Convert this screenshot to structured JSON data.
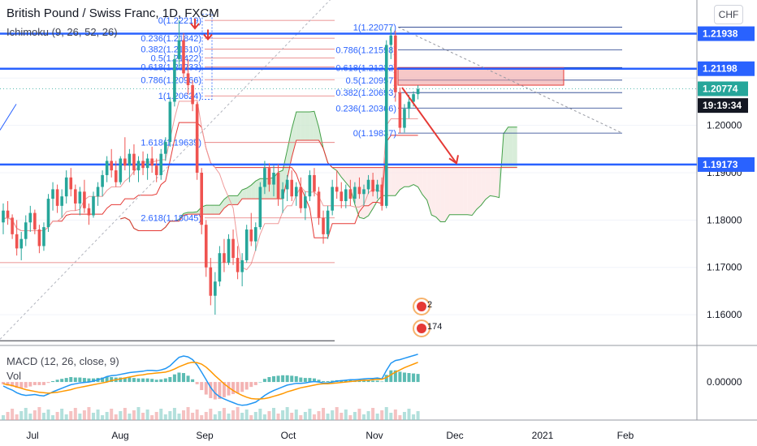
{
  "header": {
    "title": "British Pound / Swiss Franc, 1D, FXCM",
    "indicator": "Ichimoku (9, 26, 52, 26)",
    "currency": "CHF"
  },
  "colors": {
    "bull": "#26a69a",
    "bear": "#ef5350",
    "fib": "#2962ff",
    "blue_line": "#2962ff",
    "cloud_green": "#c8e6c9",
    "cloud_red": "#fce4e4",
    "green_line": "#43a047",
    "red_line": "#e53935",
    "macd": "#2196f3",
    "signal": "#ff9800",
    "arrow": "#e53935",
    "dark_label": "#131722",
    "green_label": "#26a69a"
  },
  "chart_data": [
    {
      "type": "candlestick",
      "title": "British Pound / Swiss Franc, 1D, FXCM",
      "ylim": [
        1.1535,
        1.2265
      ],
      "y_ticks": [
        "1.20000",
        "1.19000",
        "1.18000",
        "1.17000",
        "1.16000"
      ],
      "x_ticks": [
        "Jul",
        "Aug",
        "Sep",
        "Oct",
        "Nov",
        "Dec",
        "2021",
        "Feb"
      ],
      "price_labels": [
        {
          "text": "1.21938",
          "value": 1.21938,
          "style": "blue"
        },
        {
          "text": "1.21198",
          "value": 1.21198,
          "style": "blue"
        },
        {
          "text": "1.20774",
          "value": 1.20774,
          "style": "green"
        },
        {
          "text": "19:19:34",
          "value": 1.2042,
          "style": "dark"
        },
        {
          "text": "1.19173",
          "value": 1.19173,
          "style": "blue"
        }
      ],
      "horizontal_levels": [
        1.21938,
        1.21198,
        1.19173
      ],
      "fib_left": [
        {
          "label": "0(1.22219)",
          "value": 1.22219
        },
        {
          "label": "0.236(1.21842)",
          "value": 1.21842
        },
        {
          "label": "0.382(1.21610)",
          "value": 1.2161
        },
        {
          "label": "0.5(1.21422)",
          "value": 1.21422
        },
        {
          "label": "0.618(1.21233)",
          "value": 1.21233
        },
        {
          "label": "0.786(1.20966)",
          "value": 1.20966
        },
        {
          "label": "1(1.20624)",
          "value": 1.20624
        },
        {
          "label": "1.618(1.19639)",
          "value": 1.19639
        },
        {
          "label": "2.618(1.18045)",
          "value": 1.18045
        }
      ],
      "fib_right": [
        {
          "label": "1(1.22077)",
          "value": 1.22077
        },
        {
          "label": "0.786(1.21598)",
          "value": 1.21598
        },
        {
          "label": "0.618(1.21222)",
          "value": 1.21222
        },
        {
          "label": "0.5(1.20957)",
          "value": 1.20957
        },
        {
          "label": "0.382(1.20693)",
          "value": 1.20693
        },
        {
          "label": "0.236(1.20366)",
          "value": 1.20366
        },
        {
          "label": "0(1.19837)",
          "value": 1.19837
        }
      ],
      "annotation_counts": [
        "2",
        "174"
      ],
      "candles": [
        [
          1.1795,
          1.1835,
          1.177,
          1.182
        ],
        [
          1.182,
          1.184,
          1.179,
          1.1805
        ],
        [
          1.1805,
          1.1812,
          1.176,
          1.177
        ],
        [
          1.177,
          1.18,
          1.1725,
          1.174
        ],
        [
          1.174,
          1.1775,
          1.1715,
          1.176
        ],
        [
          1.176,
          1.181,
          1.1745,
          1.1795
        ],
        [
          1.1795,
          1.183,
          1.1775,
          1.1815
        ],
        [
          1.1815,
          1.1822,
          1.177,
          1.178
        ],
        [
          1.178,
          1.179,
          1.173,
          1.1745
        ],
        [
          1.1745,
          1.1795,
          1.1735,
          1.1785
        ],
        [
          1.1785,
          1.1855,
          1.1775,
          1.1845
        ],
        [
          1.1845,
          1.188,
          1.182,
          1.1865
        ],
        [
          1.1865,
          1.1875,
          1.1815,
          1.183
        ],
        [
          1.183,
          1.1865,
          1.1805,
          1.185
        ],
        [
          1.185,
          1.1905,
          1.1835,
          1.189
        ],
        [
          1.189,
          1.191,
          1.185,
          1.1865
        ],
        [
          1.1865,
          1.1875,
          1.182,
          1.1835
        ],
        [
          1.1835,
          1.187,
          1.181,
          1.186
        ],
        [
          1.186,
          1.1885,
          1.1815,
          1.1825
        ],
        [
          1.1825,
          1.1835,
          1.179,
          1.181
        ],
        [
          1.181,
          1.186,
          1.1805,
          1.185
        ],
        [
          1.185,
          1.188,
          1.183,
          1.187
        ],
        [
          1.187,
          1.1905,
          1.185,
          1.1895
        ],
        [
          1.1895,
          1.1935,
          1.188,
          1.1925
        ],
        [
          1.1925,
          1.195,
          1.189,
          1.1905
        ],
        [
          1.1905,
          1.1925,
          1.187,
          1.188
        ],
        [
          1.188,
          1.1935,
          1.1875,
          1.193
        ],
        [
          1.193,
          1.1975,
          1.1905,
          1.1915
        ],
        [
          1.1915,
          1.195,
          1.188,
          1.194
        ],
        [
          1.194,
          1.196,
          1.1895,
          1.1905
        ],
        [
          1.1905,
          1.1935,
          1.188,
          1.1925
        ],
        [
          1.1925,
          1.1945,
          1.1895,
          1.191
        ],
        [
          1.191,
          1.194,
          1.1885,
          1.193
        ],
        [
          1.193,
          1.1955,
          1.19,
          1.1915
        ],
        [
          1.1915,
          1.193,
          1.188,
          1.1895
        ],
        [
          1.1895,
          1.195,
          1.1885,
          1.194
        ],
        [
          1.194,
          1.1975,
          1.1925,
          1.1965
        ],
        [
          1.1965,
          1.206,
          1.1955,
          1.205
        ],
        [
          1.205,
          1.215,
          1.204,
          1.214
        ],
        [
          1.214,
          1.2222,
          1.212,
          1.218
        ],
        [
          1.218,
          1.2195,
          1.21,
          1.211
        ],
        [
          1.211,
          1.214,
          1.2065,
          1.2085
        ],
        [
          1.2085,
          1.2095,
          1.203,
          1.2045
        ],
        [
          1.2045,
          1.205,
          1.1885,
          1.19
        ],
        [
          1.19,
          1.191,
          1.177,
          1.179
        ],
        [
          1.179,
          1.18,
          1.168,
          1.17
        ],
        [
          1.17,
          1.172,
          1.162,
          1.164
        ],
        [
          1.164,
          1.169,
          1.16,
          1.167
        ],
        [
          1.167,
          1.1745,
          1.166,
          1.173
        ],
        [
          1.173,
          1.176,
          1.169,
          1.171
        ],
        [
          1.171,
          1.177,
          1.1705,
          1.176
        ],
        [
          1.176,
          1.178,
          1.1705,
          1.172
        ],
        [
          1.172,
          1.1745,
          1.1675,
          1.169
        ],
        [
          1.169,
          1.173,
          1.166,
          1.1715
        ],
        [
          1.1715,
          1.179,
          1.171,
          1.178
        ],
        [
          1.178,
          1.1815,
          1.1745,
          1.1755
        ],
        [
          1.1755,
          1.1795,
          1.1735,
          1.1785
        ],
        [
          1.1785,
          1.188,
          1.178,
          1.187
        ],
        [
          1.187,
          1.1925,
          1.1855,
          1.191
        ],
        [
          1.191,
          1.192,
          1.186,
          1.1875
        ],
        [
          1.1875,
          1.1915,
          1.185,
          1.19
        ],
        [
          1.19,
          1.1918,
          1.183,
          1.1845
        ],
        [
          1.1845,
          1.188,
          1.1815,
          1.1865
        ],
        [
          1.1865,
          1.1895,
          1.184,
          1.1885
        ],
        [
          1.1885,
          1.1905,
          1.184,
          1.185
        ],
        [
          1.185,
          1.188,
          1.183,
          1.187
        ],
        [
          1.187,
          1.189,
          1.1815,
          1.1825
        ],
        [
          1.1825,
          1.186,
          1.18,
          1.185
        ],
        [
          1.185,
          1.1905,
          1.184,
          1.1895
        ],
        [
          1.1895,
          1.191,
          1.185,
          1.186
        ],
        [
          1.186,
          1.187,
          1.179,
          1.1805
        ],
        [
          1.1805,
          1.182,
          1.175,
          1.177
        ],
        [
          1.177,
          1.183,
          1.176,
          1.182
        ],
        [
          1.182,
          1.1885,
          1.181,
          1.187
        ],
        [
          1.187,
          1.1905,
          1.1845,
          1.186
        ],
        [
          1.186,
          1.188,
          1.1825,
          1.184
        ],
        [
          1.184,
          1.1875,
          1.1825,
          1.1865
        ],
        [
          1.1865,
          1.1885,
          1.183,
          1.1845
        ],
        [
          1.1845,
          1.188,
          1.1835,
          1.187
        ],
        [
          1.187,
          1.189,
          1.1845,
          1.1855
        ],
        [
          1.1855,
          1.1875,
          1.183,
          1.1865
        ],
        [
          1.1865,
          1.1895,
          1.1855,
          1.1885
        ],
        [
          1.1885,
          1.19,
          1.185,
          1.186
        ],
        [
          1.186,
          1.1885,
          1.1845,
          1.1875
        ],
        [
          1.1875,
          1.189,
          1.182,
          1.183
        ],
        [
          1.183,
          1.218,
          1.1825,
          1.217
        ],
        [
          1.217,
          1.2208,
          1.214,
          1.219
        ],
        [
          1.219,
          1.22,
          1.205,
          1.207
        ],
        [
          1.207,
          1.208,
          1.1984,
          1.1995
        ],
        [
          1.1995,
          1.2045,
          1.1985,
          1.2035
        ],
        [
          1.2035,
          1.2065,
          1.2015,
          1.205
        ],
        [
          1.205,
          1.2072,
          1.204,
          1.2066
        ],
        [
          1.2066,
          1.2085,
          1.2055,
          1.2077
        ]
      ],
      "macd": {
        "ylim": [
          -0.0085,
          0.0078
        ],
        "y_ticks": [
          "0.00000"
        ],
        "series": [
          {
            "name": "MACD",
            "values": [
              -0.0009,
              -0.0014,
              -0.0018,
              -0.0024,
              -0.0028,
              -0.003,
              -0.0029,
              -0.0028,
              -0.003,
              -0.0031,
              -0.0027,
              -0.0022,
              -0.0018,
              -0.0014,
              -0.001,
              -0.0006,
              -0.0004,
              -0.0002,
              -0.0001,
              0.0,
              0.0002,
              0.0005,
              0.0008,
              0.0012,
              0.0014,
              0.0015,
              0.0017,
              0.0019,
              0.0021,
              0.0022,
              0.0023,
              0.0024,
              0.0026,
              0.0026,
              0.0025,
              0.0027,
              0.003,
              0.0036,
              0.0046,
              0.0055,
              0.0058,
              0.0056,
              0.005,
              0.0038,
              0.0022,
              0.0005,
              -0.0012,
              -0.0025,
              -0.0033,
              -0.0038,
              -0.0042,
              -0.0046,
              -0.005,
              -0.0052,
              -0.0051,
              -0.0048,
              -0.0045,
              -0.0038,
              -0.003,
              -0.0024,
              -0.0019,
              -0.0015,
              -0.0011,
              -0.0007,
              -0.0005,
              -0.0003,
              -0.0003,
              -0.0002,
              0.0,
              0.0001,
              0.0,
              -0.0002,
              -0.0002,
              0.0,
              0.0002,
              0.0003,
              0.0004,
              0.0005,
              0.0005,
              0.0006,
              0.0007,
              0.0008,
              0.0008,
              0.0009,
              0.0007,
              0.0026,
              0.0042,
              0.0048,
              0.005,
              0.0053,
              0.0056,
              0.0059,
              0.0062
            ]
          },
          {
            "name": "Signal",
            "values": [
              -0.0004,
              -0.0006,
              -0.0008,
              -0.0011,
              -0.0014,
              -0.0017,
              -0.0019,
              -0.0021,
              -0.0023,
              -0.0024,
              -0.0025,
              -0.0024,
              -0.0023,
              -0.0021,
              -0.0019,
              -0.0017,
              -0.0014,
              -0.0012,
              -0.001,
              -0.0008,
              -0.0006,
              -0.0004,
              -0.0002,
              0.0,
              0.0003,
              0.0005,
              0.0007,
              0.0009,
              0.0011,
              0.0013,
              0.0015,
              0.0016,
              0.0018,
              0.0019,
              0.002,
              0.0021,
              0.0022,
              0.0025,
              0.0029,
              0.0034,
              0.0038,
              0.0042,
              0.0044,
              0.0043,
              0.004,
              0.0033,
              0.0024,
              0.0014,
              0.0005,
              -0.0004,
              -0.0012,
              -0.0019,
              -0.0025,
              -0.003,
              -0.0034,
              -0.0037,
              -0.0038,
              -0.0038,
              -0.0037,
              -0.0035,
              -0.0032,
              -0.0029,
              -0.0026,
              -0.0022,
              -0.0019,
              -0.0016,
              -0.0013,
              -0.0011,
              -0.0009,
              -0.0007,
              -0.0005,
              -0.0004,
              -0.0004,
              -0.0003,
              -0.0002,
              -0.0001,
              0.0,
              0.0001,
              0.0002,
              0.0003,
              0.0004,
              0.0004,
              0.0005,
              0.0006,
              0.0006,
              0.001,
              0.0016,
              0.0022,
              0.0027,
              0.0032,
              0.0036,
              0.004,
              0.0044
            ]
          }
        ]
      }
    }
  ]
}
